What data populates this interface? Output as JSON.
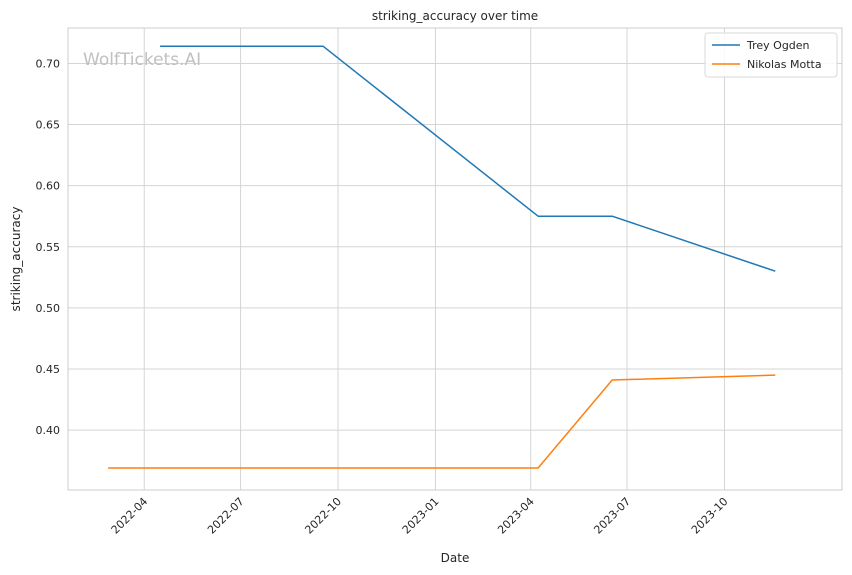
{
  "watermark": "WolfTickets.AI",
  "chart_data": {
    "type": "line",
    "title": "striking_accuracy over time",
    "xlabel": "Date",
    "ylabel": "striking_accuracy",
    "x_ticks": [
      "2022-04",
      "2022-07",
      "2022-10",
      "2023-01",
      "2023-04",
      "2023-07",
      "2023-10"
    ],
    "y_ticks": [
      0.4,
      0.45,
      0.5,
      0.55,
      0.6,
      0.65,
      0.7
    ],
    "ylim": [
      0.351,
      0.729
    ],
    "xlim": [
      "2022-01-19",
      "2024-01-20"
    ],
    "grid": true,
    "legend_position": "top-right",
    "series": [
      {
        "name": "Trey Ogden",
        "color": "#1f77b4",
        "points": [
          {
            "x": "2022-04-16",
            "y": 0.714
          },
          {
            "x": "2022-09-17",
            "y": 0.714
          },
          {
            "x": "2023-04-08",
            "y": 0.575
          },
          {
            "x": "2023-06-17",
            "y": 0.575
          },
          {
            "x": "2023-11-18",
            "y": 0.53
          }
        ]
      },
      {
        "name": "Nikolas Motta",
        "color": "#ff7f0e",
        "points": [
          {
            "x": "2022-02-26",
            "y": 0.369
          },
          {
            "x": "2023-04-08",
            "y": 0.369
          },
          {
            "x": "2023-06-17",
            "y": 0.441
          },
          {
            "x": "2023-11-18",
            "y": 0.445
          }
        ]
      }
    ]
  }
}
